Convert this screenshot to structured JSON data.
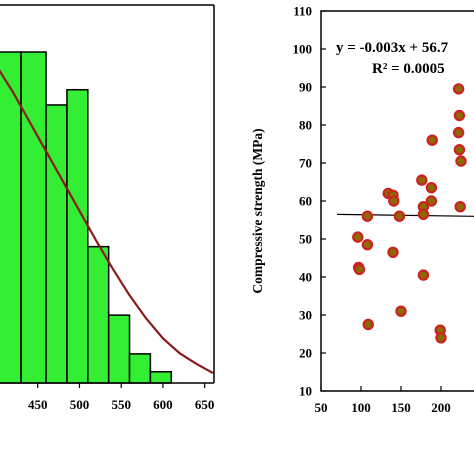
{
  "chart_data": [
    {
      "type": "bar",
      "subtype": "histogram-with-fitted-curve",
      "title": "",
      "xlabel": "",
      "ylabel": "",
      "xlim": [
        400,
        660
      ],
      "x_ticks": [
        "450",
        "500",
        "550",
        "600",
        "650"
      ],
      "x_tick_values": [
        450,
        500,
        550,
        600,
        650
      ],
      "bins": [
        {
          "from": 400,
          "to": 430,
          "value": 1.0
        },
        {
          "from": 430,
          "to": 460,
          "value": 1.0
        },
        {
          "from": 460,
          "to": 485,
          "value": 0.84
        },
        {
          "from": 485,
          "to": 510,
          "value": 0.886
        },
        {
          "from": 510,
          "to": 535,
          "value": 0.412
        },
        {
          "from": 535,
          "to": 560,
          "value": 0.205
        },
        {
          "from": 560,
          "to": 585,
          "value": 0.088
        },
        {
          "from": 585,
          "to": 610,
          "value": 0.034
        }
      ],
      "fit_curve": {
        "x": [
          400,
          420,
          440,
          460,
          480,
          500,
          520,
          540,
          560,
          580,
          600,
          620,
          640,
          660
        ],
        "y": [
          0.96,
          0.88,
          0.79,
          0.7,
          0.61,
          0.52,
          0.43,
          0.345,
          0.265,
          0.195,
          0.135,
          0.09,
          0.058,
          0.03
        ]
      },
      "bar_color": "#33ee33",
      "curve_color": "#8b1a1a"
    },
    {
      "type": "scatter",
      "title": "",
      "xlabel": "",
      "ylabel": "Compressive strength (MPa)",
      "xlim": [
        50,
        250
      ],
      "ylim": [
        10,
        110
      ],
      "x_ticks": [
        "50",
        "100",
        "150",
        "200"
      ],
      "x_tick_values": [
        50,
        100,
        150,
        200
      ],
      "y_ticks": [
        "10",
        "20",
        "30",
        "40",
        "50",
        "60",
        "70",
        "80",
        "90",
        "100",
        "110"
      ],
      "y_tick_values": [
        10,
        20,
        30,
        40,
        50,
        60,
        70,
        80,
        90,
        100,
        110
      ],
      "equation": "y = -0.003x + 56.7",
      "r_squared": "R² = 0.0005",
      "trendline": {
        "x": [
          70,
          250
        ],
        "slope": -0.003,
        "intercept": 56.7
      },
      "points": [
        {
          "x": 96,
          "y": 50.5
        },
        {
          "x": 97,
          "y": 42.5
        },
        {
          "x": 98,
          "y": 42
        },
        {
          "x": 108,
          "y": 56
        },
        {
          "x": 108,
          "y": 48.5
        },
        {
          "x": 109,
          "y": 27.5
        },
        {
          "x": 134,
          "y": 62
        },
        {
          "x": 140,
          "y": 61.5
        },
        {
          "x": 141,
          "y": 60
        },
        {
          "x": 140,
          "y": 46.5
        },
        {
          "x": 148,
          "y": 56
        },
        {
          "x": 150,
          "y": 31
        },
        {
          "x": 176,
          "y": 65.5
        },
        {
          "x": 178,
          "y": 58.5
        },
        {
          "x": 178,
          "y": 56.5
        },
        {
          "x": 178,
          "y": 40.5
        },
        {
          "x": 189,
          "y": 76
        },
        {
          "x": 188,
          "y": 63.5
        },
        {
          "x": 188,
          "y": 60
        },
        {
          "x": 199,
          "y": 26
        },
        {
          "x": 200,
          "y": 24
        },
        {
          "x": 222,
          "y": 89.5
        },
        {
          "x": 223,
          "y": 82.5
        },
        {
          "x": 222,
          "y": 78
        },
        {
          "x": 223,
          "y": 73.5
        },
        {
          "x": 225,
          "y": 70.5
        },
        {
          "x": 224,
          "y": 58.5
        }
      ],
      "point_fill": "#8b6b00",
      "point_edge": "#cc2222"
    }
  ]
}
